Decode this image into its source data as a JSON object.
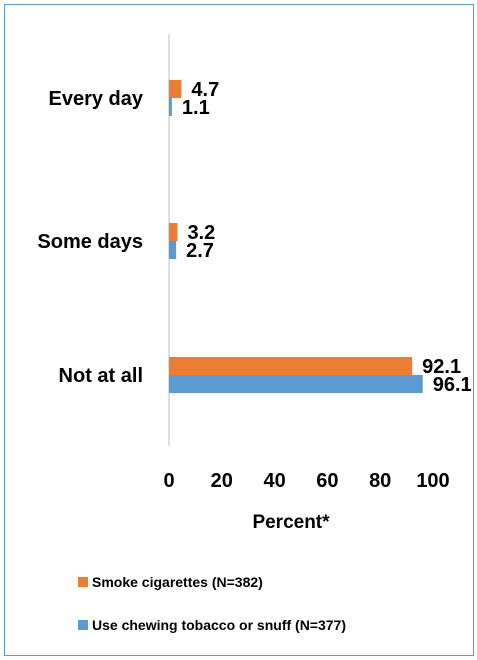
{
  "chart_data": {
    "type": "bar",
    "orientation": "horizontal",
    "categories": [
      "Every day",
      "Some days",
      "Not at all"
    ],
    "series": [
      {
        "name": "Smoke cigarettes (N=382)",
        "values": [
          4.7,
          3.2,
          92.1
        ],
        "color": "#ed7d31"
      },
      {
        "name": "Use chewing tobacco or snuff (N=377)",
        "values": [
          1.1,
          2.7,
          96.1
        ],
        "color": "#5b9bd5"
      }
    ],
    "xlabel": "Percent*",
    "ylabel": "",
    "xlim": [
      0,
      100
    ],
    "xticks": [
      0,
      20,
      40,
      60,
      80,
      100
    ],
    "grid": false,
    "legend_position": "bottom",
    "frame_color": "#5b9bd5"
  }
}
